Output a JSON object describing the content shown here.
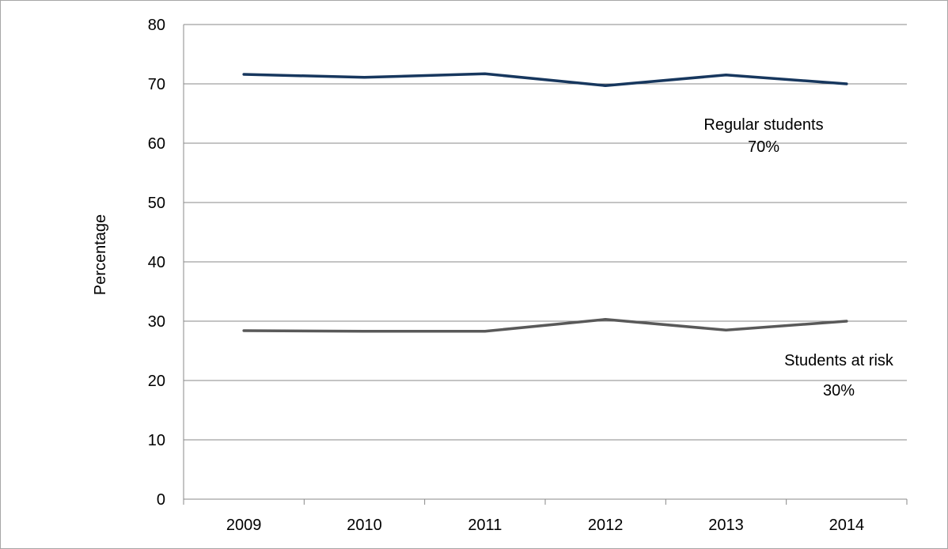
{
  "chart_data": {
    "type": "line",
    "title": "",
    "xlabel": "",
    "ylabel": "Percentage",
    "categories": [
      "2009",
      "2010",
      "2011",
      "2012",
      "2013",
      "2014"
    ],
    "ylim": [
      0,
      80
    ],
    "yticks": [
      "0",
      "10",
      "20",
      "30",
      "40",
      "50",
      "60",
      "70",
      "80"
    ],
    "grid": true,
    "series": [
      {
        "color": "#17375e",
        "values": [
          71.6,
          71.1,
          71.7,
          69.7,
          71.5,
          70.0
        ]
      },
      {
        "color": "#595959",
        "values": [
          28.4,
          28.3,
          28.3,
          30.3,
          28.5,
          30.0
        ]
      }
    ],
    "annotations": [
      {
        "line1": "Regular students",
        "line2": "70%"
      },
      {
        "line1": "Students at risk",
        "line2": "30%"
      }
    ]
  }
}
